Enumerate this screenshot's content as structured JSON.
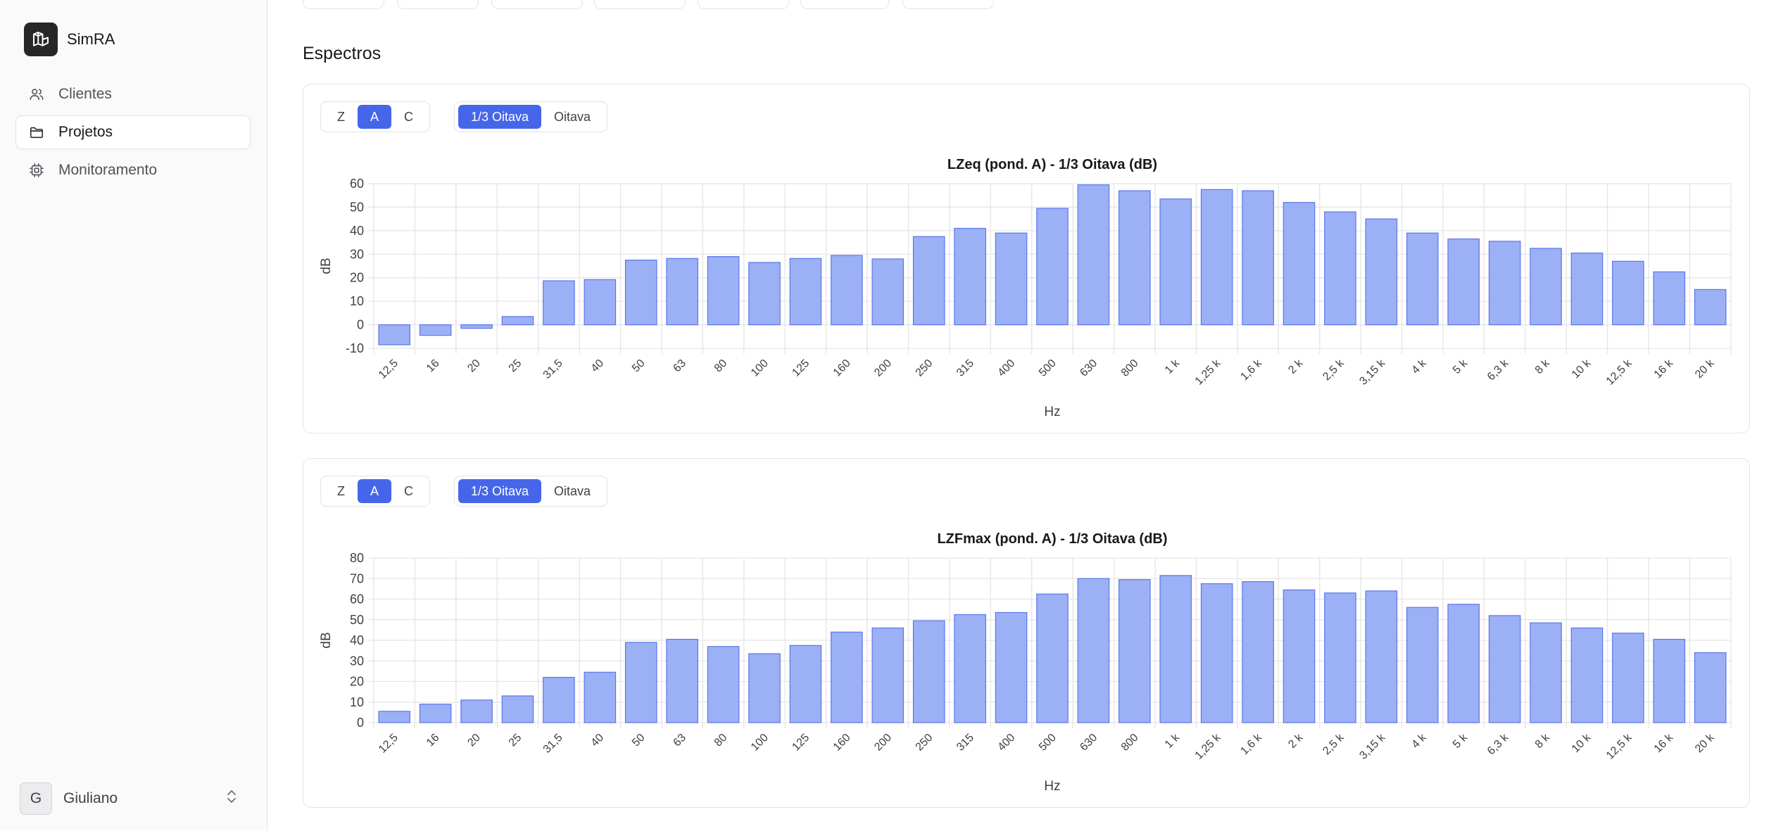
{
  "app": {
    "name": "SimRA"
  },
  "sidebar": {
    "items": [
      {
        "label": "Clientes",
        "icon": "users-icon",
        "active": false
      },
      {
        "label": "Projetos",
        "icon": "folder-icon",
        "active": true
      },
      {
        "label": "Monitoramento",
        "icon": "cpu-icon",
        "active": false
      }
    ]
  },
  "user": {
    "initial": "G",
    "name": "Giuliano"
  },
  "page": {
    "section_title": "Espectros"
  },
  "controls": {
    "weighting": [
      "Z",
      "A",
      "C"
    ],
    "weighting_selected": "A",
    "band": [
      "1/3 Oitava",
      "Oitava"
    ],
    "band_selected": "1/3 Oitava"
  },
  "colors": {
    "accent": "#4666ea",
    "bar_fill": "#9cb0f6",
    "bar_stroke": "#5b76ea"
  },
  "chart_data": [
    {
      "type": "bar",
      "title": "LZeq (pond. A) - 1/3 Oitava (dB)",
      "xlabel": "Hz",
      "ylabel": "dB",
      "ylim": [
        -10,
        60
      ],
      "yticks": [
        -10,
        0,
        10,
        20,
        30,
        40,
        50,
        60
      ],
      "grid": true,
      "categories": [
        "12,5",
        "16",
        "20",
        "25",
        "31,5",
        "40",
        "50",
        "63",
        "80",
        "100",
        "125",
        "160",
        "200",
        "250",
        "315",
        "400",
        "500",
        "630",
        "800",
        "1 k",
        "1,25 k",
        "1,6 k",
        "2 k",
        "2,5 k",
        "3,15 k",
        "4 k",
        "5 k",
        "6,3 k",
        "8 k",
        "10 k",
        "12,5 k",
        "16 k",
        "20 k"
      ],
      "values": [
        -8.5,
        -4.5,
        -1.5,
        3.5,
        18.7,
        19.2,
        27.5,
        28.2,
        29,
        26.5,
        28.2,
        29.5,
        28,
        37.5,
        41,
        39,
        49.5,
        59.5,
        57,
        53.5,
        57.5,
        57,
        52,
        48,
        45,
        39,
        36.5,
        35.5,
        32.5,
        30.5,
        27,
        22.5,
        15
      ]
    },
    {
      "type": "bar",
      "title": "LZFmax (pond. A) - 1/3 Oitava (dB)",
      "xlabel": "Hz",
      "ylabel": "dB",
      "ylim": [
        0,
        80
      ],
      "yticks": [
        0,
        10,
        20,
        30,
        40,
        50,
        60,
        70,
        80
      ],
      "grid": true,
      "categories": [
        "12,5",
        "16",
        "20",
        "25",
        "31,5",
        "40",
        "50",
        "63",
        "80",
        "100",
        "125",
        "160",
        "200",
        "250",
        "315",
        "400",
        "500",
        "630",
        "800",
        "1 k",
        "1,25 k",
        "1,6 k",
        "2 k",
        "2,5 k",
        "3,15 k",
        "4 k",
        "5 k",
        "6,3 k",
        "8 k",
        "10 k",
        "12,5 k",
        "16 k",
        "20 k"
      ],
      "values": [
        5.5,
        9,
        11,
        13,
        22,
        24.5,
        39,
        40.5,
        37,
        33.5,
        37.5,
        44,
        46,
        49.5,
        52.5,
        53.5,
        62.5,
        70,
        69.5,
        71.5,
        67.5,
        68.5,
        64.5,
        63,
        64,
        56,
        57.5,
        52,
        48.5,
        46,
        43.5,
        40.5,
        34
      ]
    }
  ]
}
